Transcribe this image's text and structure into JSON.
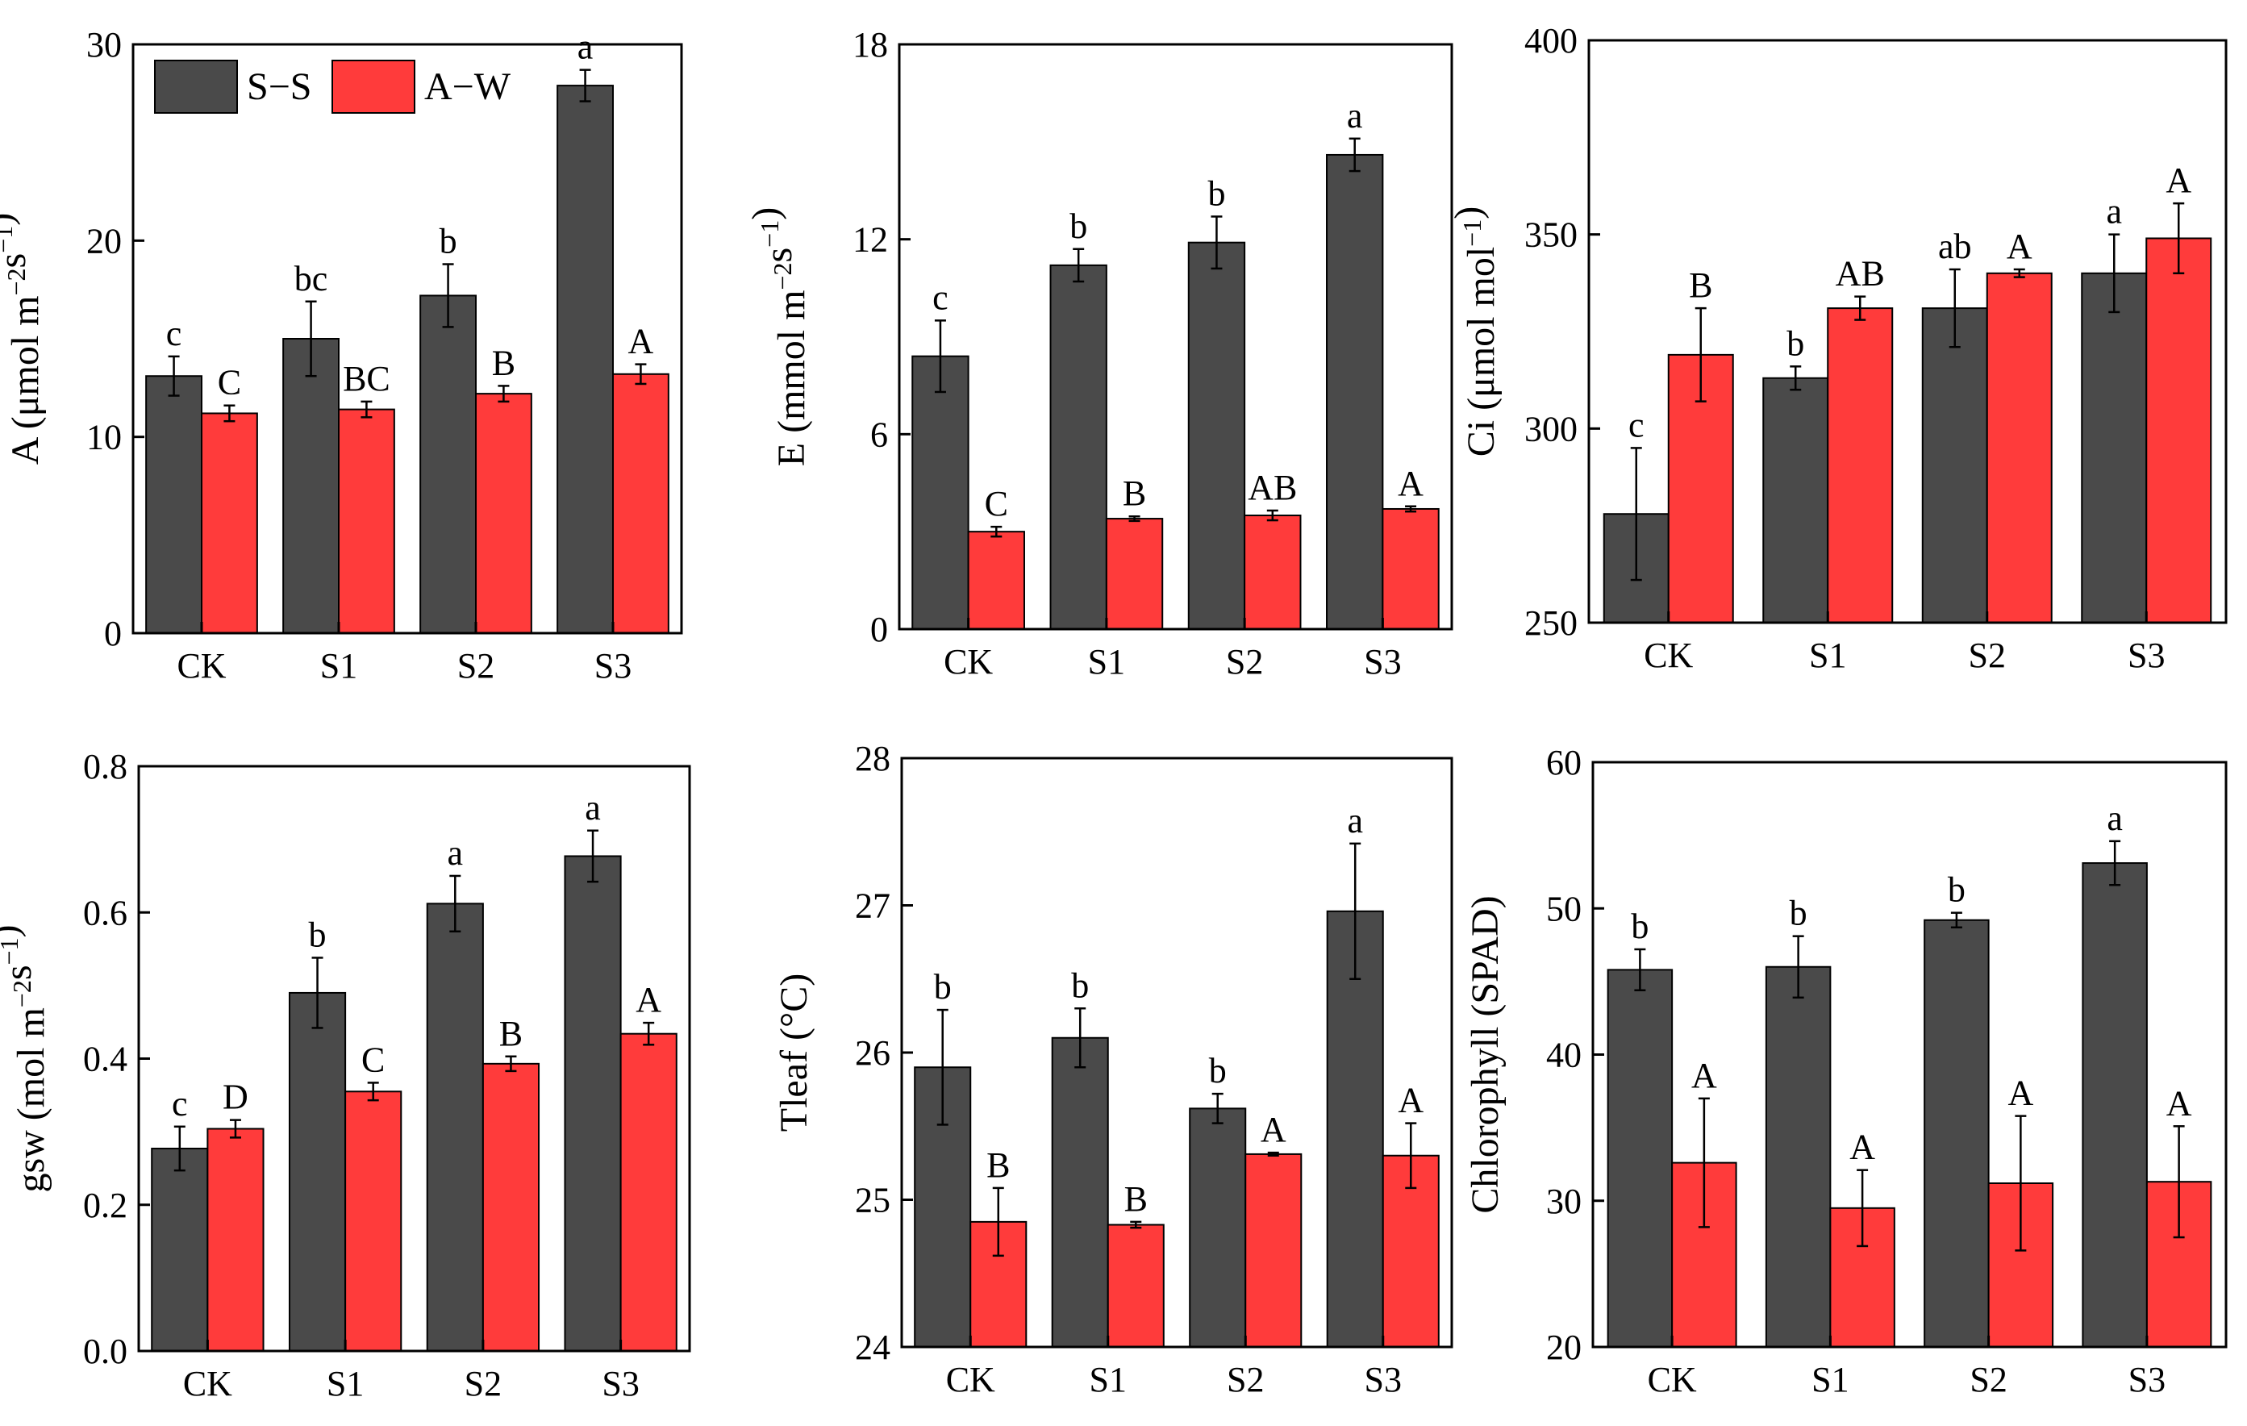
{
  "colors": {
    "S-S": "#4a4a4a",
    "A-W": "#ff3b3b",
    "axis": "#000000"
  },
  "legend": {
    "placement": "top-left inside first panel",
    "items": [
      {
        "name": "S−S",
        "color": "#4a4a4a"
      },
      {
        "name": "A−W",
        "color": "#ff3b3b"
      }
    ]
  },
  "chart_data": [
    {
      "type": "bar",
      "ylabel_main": "A (μmol m",
      "ylabel_sup1": "−2",
      "ylabel_mid": "s",
      "ylabel_sup2": "−1",
      "ylabel_end": ")",
      "categories": [
        "CK",
        "S1",
        "S2",
        "S3"
      ],
      "ylim": [
        0,
        30
      ],
      "yticks": [
        0,
        10,
        20,
        30
      ],
      "series": [
        {
          "name": "S−S",
          "values": [
            13.1,
            15.0,
            17.2,
            27.9
          ],
          "errors": [
            1.0,
            1.9,
            1.6,
            0.8
          ],
          "labels": [
            "c",
            "bc",
            "b",
            "a"
          ]
        },
        {
          "name": "A−W",
          "values": [
            11.2,
            11.4,
            12.2,
            13.2
          ],
          "errors": [
            0.4,
            0.4,
            0.4,
            0.5
          ],
          "labels": [
            "C",
            "BC",
            "B",
            "A"
          ]
        }
      ]
    },
    {
      "type": "bar",
      "ylabel_main": "E (mmol m",
      "ylabel_sup1": "−2",
      "ylabel_mid": "s",
      "ylabel_sup2": "−1",
      "ylabel_end": ")",
      "categories": [
        "CK",
        "S1",
        "S2",
        "S3"
      ],
      "ylim": [
        0,
        18
      ],
      "yticks": [
        0,
        6,
        12,
        18
      ],
      "series": [
        {
          "name": "S−S",
          "values": [
            8.4,
            11.2,
            11.9,
            14.6
          ],
          "errors": [
            1.1,
            0.5,
            0.8,
            0.5
          ],
          "labels": [
            "c",
            "b",
            "b",
            "a"
          ]
        },
        {
          "name": "A−W",
          "values": [
            3.0,
            3.4,
            3.5,
            3.7
          ],
          "errors": [
            0.15,
            0.07,
            0.15,
            0.08
          ],
          "labels": [
            "C",
            "B",
            "AB",
            "A"
          ]
        }
      ]
    },
    {
      "type": "bar",
      "ylabel_main": "Ci (μmol mol",
      "ylabel_sup1": "−1",
      "ylabel_mid": "",
      "ylabel_sup2": "",
      "ylabel_end": ")",
      "categories": [
        "CK",
        "S1",
        "S2",
        "S3"
      ],
      "ylim": [
        250,
        400
      ],
      "yticks": [
        250,
        300,
        350,
        400
      ],
      "series": [
        {
          "name": "S−S",
          "values": [
            278,
            313,
            331,
            340
          ],
          "errors": [
            17,
            3,
            10,
            10
          ],
          "labels": [
            "c",
            "b",
            "ab",
            "a"
          ]
        },
        {
          "name": "A−W",
          "values": [
            319,
            331,
            340,
            349
          ],
          "errors": [
            12,
            3,
            1,
            9
          ],
          "labels": [
            "B",
            "AB",
            "A",
            "A"
          ]
        }
      ]
    },
    {
      "type": "bar",
      "ylabel_main": "gsw (mol m",
      "ylabel_sup1": "−2",
      "ylabel_mid": "s",
      "ylabel_sup2": "−1",
      "ylabel_end": ")",
      "categories": [
        "CK",
        "S1",
        "S2",
        "S3"
      ],
      "ylim": [
        0,
        0.8
      ],
      "yticks": [
        "0.0",
        "0.2",
        "0.4",
        "0.6",
        "0.8"
      ],
      "series": [
        {
          "name": "S−S",
          "values": [
            0.277,
            0.49,
            0.612,
            0.677
          ],
          "errors": [
            0.03,
            0.048,
            0.038,
            0.035
          ],
          "labels": [
            "c",
            "b",
            "a",
            "a"
          ]
        },
        {
          "name": "A−W",
          "values": [
            0.304,
            0.355,
            0.393,
            0.434
          ],
          "errors": [
            0.012,
            0.012,
            0.01,
            0.015
          ],
          "labels": [
            "D",
            "C",
            "B",
            "A"
          ]
        }
      ]
    },
    {
      "type": "bar",
      "ylabel_main": "Tleaf (°C)",
      "ylabel_sup1": "",
      "ylabel_mid": "",
      "ylabel_sup2": "",
      "ylabel_end": "",
      "categories": [
        "CK",
        "S1",
        "S2",
        "S3"
      ],
      "ylim": [
        24,
        28
      ],
      "yticks": [
        24,
        25,
        26,
        27,
        28
      ],
      "series": [
        {
          "name": "S−S",
          "values": [
            25.9,
            26.1,
            25.62,
            26.96
          ],
          "errors": [
            0.39,
            0.2,
            0.1,
            0.46
          ],
          "labels": [
            "b",
            "b",
            "b",
            "a"
          ]
        },
        {
          "name": "A−W",
          "values": [
            24.85,
            24.83,
            25.31,
            25.3
          ],
          "errors": [
            0.23,
            0.02,
            0.01,
            0.22
          ],
          "labels": [
            "B",
            "B",
            "A",
            "A"
          ]
        }
      ]
    },
    {
      "type": "bar",
      "ylabel_main": "Chlorophyll (SPAD)",
      "ylabel_sup1": "",
      "ylabel_mid": "",
      "ylabel_sup2": "",
      "ylabel_end": "",
      "categories": [
        "CK",
        "S1",
        "S2",
        "S3"
      ],
      "ylim": [
        20,
        60
      ],
      "yticks": [
        20,
        30,
        40,
        50,
        60
      ],
      "series": [
        {
          "name": "S−S",
          "values": [
            45.8,
            46.0,
            49.2,
            53.1
          ],
          "errors": [
            1.4,
            2.1,
            0.5,
            1.5
          ],
          "labels": [
            "b",
            "b",
            "b",
            "a"
          ]
        },
        {
          "name": "A−W",
          "values": [
            32.6,
            29.5,
            31.2,
            31.3
          ],
          "errors": [
            4.4,
            2.6,
            4.6,
            3.8
          ],
          "labels": [
            "A",
            "A",
            "A",
            "A"
          ]
        }
      ]
    }
  ]
}
